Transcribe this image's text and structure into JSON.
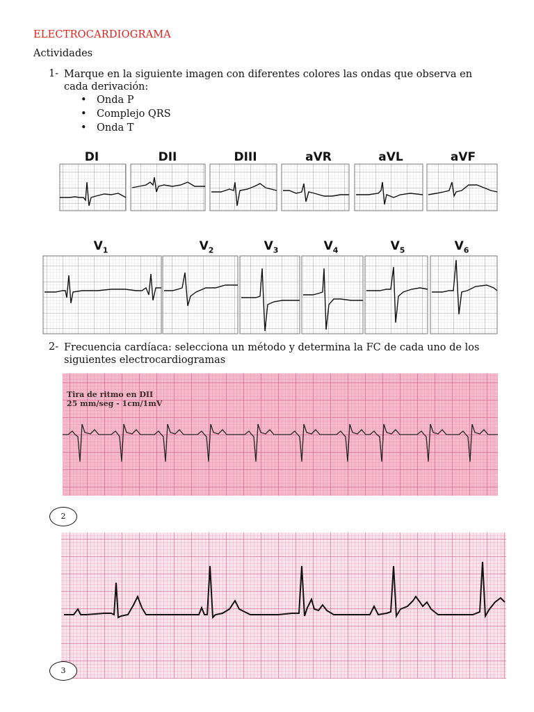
{
  "title": "ELECTROCARDIOGRAMA",
  "subtitle": "Actividades",
  "q1": {
    "num": "1-",
    "text": "Marque en la siguiente imagen con diferentes colores las ondas que observa en cada derivación:",
    "bullets": [
      "Onda P",
      "Complejo QRS",
      "Onda T"
    ]
  },
  "limb_leads": [
    "DI",
    "DII",
    "DIII",
    "aVR",
    "aVL",
    "aVF"
  ],
  "precordial_leads": [
    {
      "base": "V",
      "sub": "1"
    },
    {
      "base": "V",
      "sub": "2"
    },
    {
      "base": "V",
      "sub": "3"
    },
    {
      "base": "V",
      "sub": "4"
    },
    {
      "base": "V",
      "sub": "5"
    },
    {
      "base": "V",
      "sub": "6"
    }
  ],
  "q2": {
    "num": "2-",
    "text": "Frecuencia cardíaca: selecciona un método y determina la FC de cada uno de los siguientes electrocardiogramas"
  },
  "strip1": {
    "caption_line1": "Tira de ritmo en DII",
    "caption_line2": "25 mm/seg - 1cm/1mV"
  },
  "strip_labels": [
    "2",
    "3"
  ],
  "colors": {
    "title": "#e0201a",
    "pink_paper": "#f6b9cc",
    "pink_grid": "#c8457a"
  }
}
